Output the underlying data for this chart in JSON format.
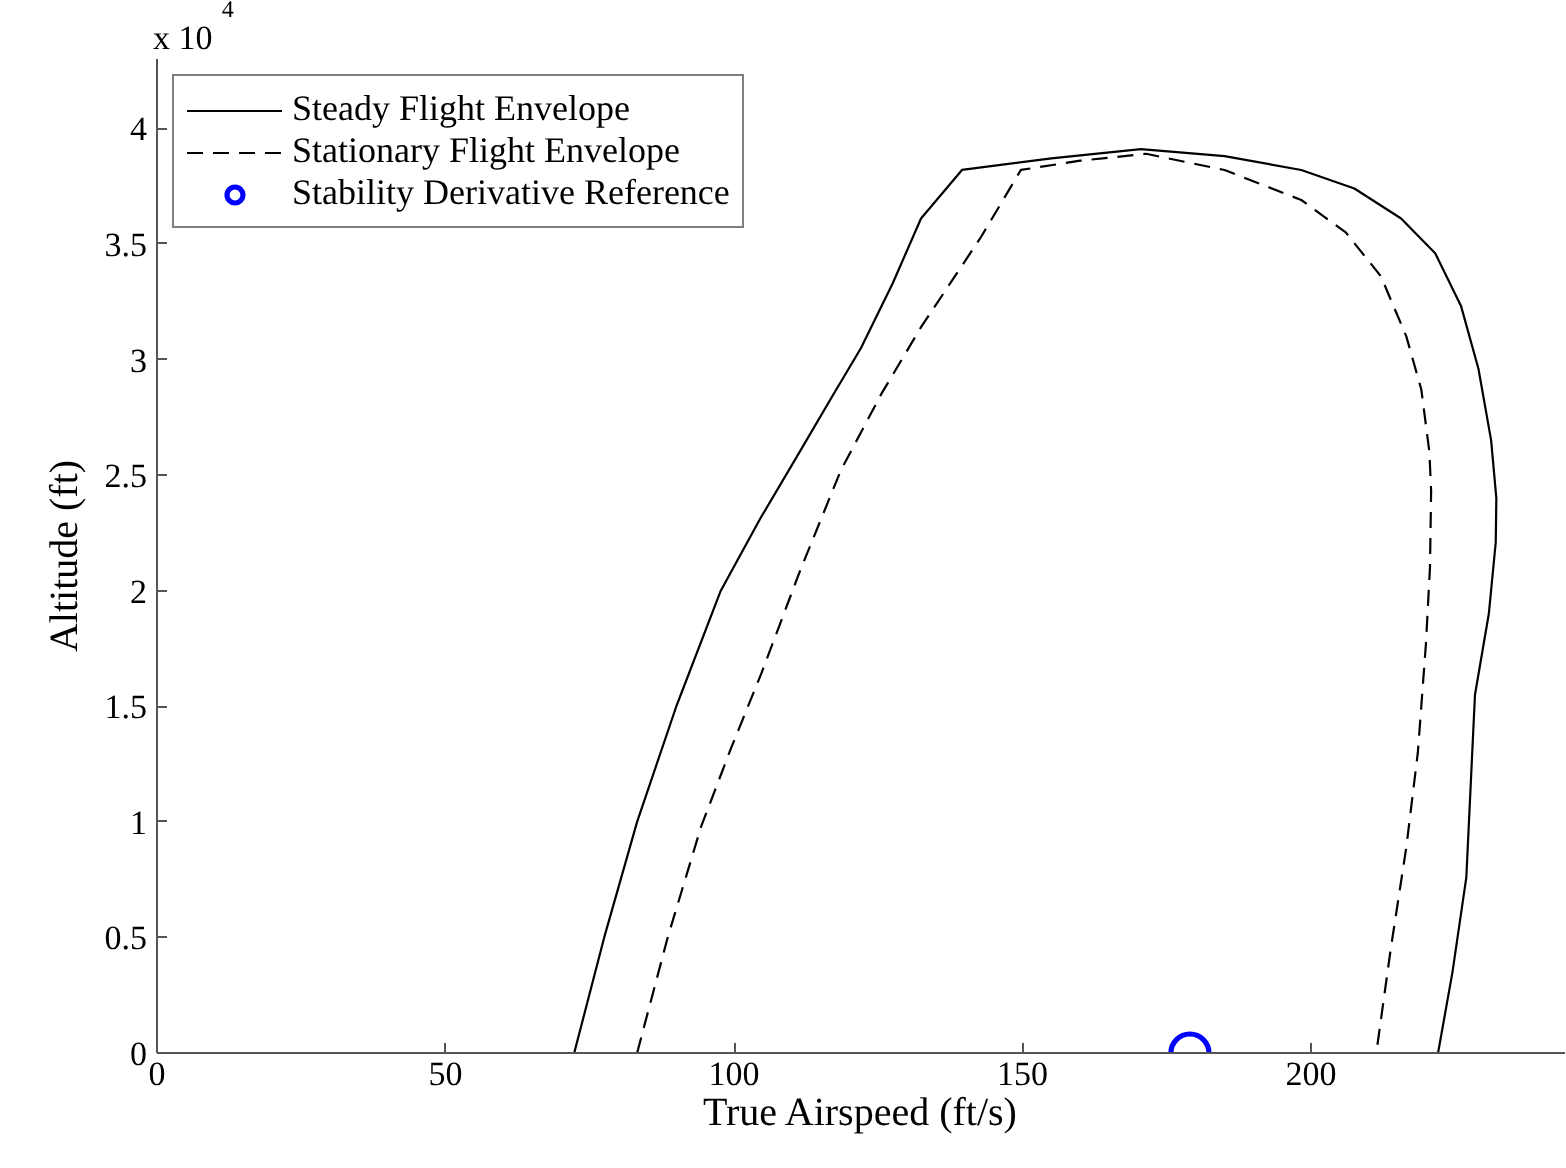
{
  "chart_data": {
    "type": "line",
    "xlabel": "True Airspeed (ft/s)",
    "ylabel": "Altitude (ft)",
    "xlim": [
      0,
      244
    ],
    "ylim": [
      0,
      4.3
    ],
    "xticks": [
      0,
      50,
      100,
      150,
      200
    ],
    "yticks": [
      0,
      0.5,
      1,
      1.5,
      2,
      2.5,
      3,
      3.5,
      4
    ],
    "annotations": [
      "x 10$^{4}$"
    ],
    "legend": "top left",
    "grid": false,
    "series": [
      {
        "name": "Steady Flight Envelope",
        "line_style": "solid",
        "marker": "none",
        "color": "#000000",
        "x": [
          72.3,
          77.5,
          83.2,
          90,
          97.7,
          104.5,
          111.6,
          117,
          122,
          127.5,
          132.4,
          139.5,
          155,
          170.5,
          185,
          198.3,
          207.5,
          215.6,
          221.5,
          226,
          229,
          231.2,
          232.1,
          232,
          230.8,
          228.4,
          226.9,
          224.5,
          222
        ],
        "values": [
          0,
          0.5,
          1,
          1.5,
          2,
          2.31,
          2.61,
          2.84,
          3.05,
          3.33,
          3.61,
          3.82,
          3.87,
          3.91,
          3.88,
          3.82,
          3.74,
          3.61,
          3.46,
          3.23,
          2.96,
          2.65,
          2.4,
          2.21,
          1.9,
          1.55,
          0.76,
          0.35,
          0
        ]
      },
      {
        "name": "Stationary Flight Envelope",
        "line_style": "dashed",
        "marker": "none",
        "color": "#000000",
        "x": [
          83.2,
          88.5,
          94.3,
          99.5,
          104.7,
          111.5,
          118.5,
          125.5,
          132.4,
          142.8,
          149.7,
          160,
          171.4,
          185,
          198.3,
          206,
          212.1,
          216.5,
          219.1,
          220.5,
          220.8,
          220.6,
          219.9,
          218.5,
          216.5,
          213.8,
          211.3
        ],
        "values": [
          0,
          0.5,
          0.98,
          1.32,
          1.64,
          2.09,
          2.52,
          2.85,
          3.14,
          3.53,
          3.82,
          3.86,
          3.89,
          3.82,
          3.69,
          3.55,
          3.36,
          3.1,
          2.87,
          2.6,
          2.43,
          2.1,
          1.77,
          1.3,
          0.89,
          0.45,
          0
        ]
      },
      {
        "name": "Stability Derivative Reference",
        "type": "scatter",
        "marker": "circle",
        "color": "#0000ff",
        "x": [
          179
        ],
        "values": [
          0
        ]
      }
    ]
  }
}
